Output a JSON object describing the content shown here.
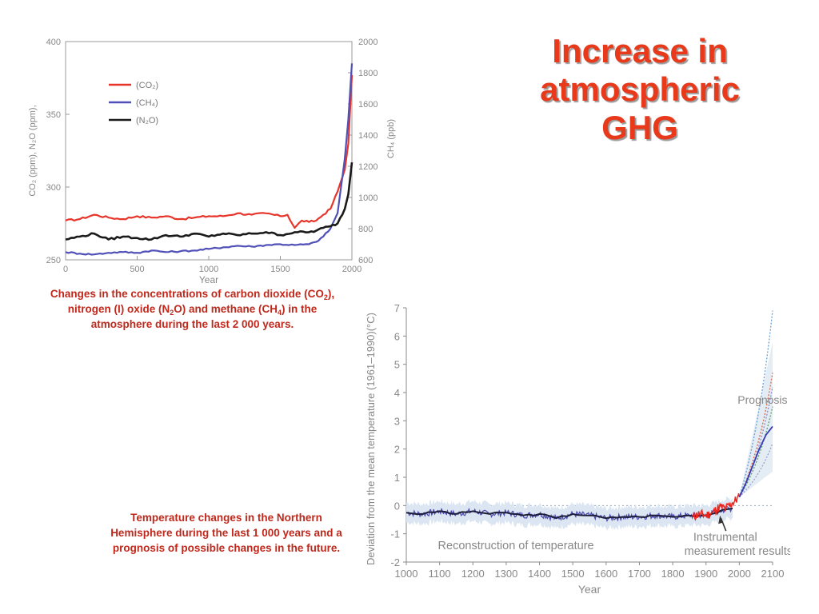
{
  "slide": {
    "title_lines": [
      "Increase in",
      "atmospheric",
      "GHG"
    ],
    "caption1": {
      "p1": "Changes in the concentrations of carbon dioxide (CO",
      "sub1": "2",
      "p2": "), nitrogen (I) oxide (N",
      "sub2": "2",
      "p3": "O) and methane (CH",
      "sub3": "4",
      "p4": ") in the atmosphere during the last 2 000 years."
    },
    "caption2": "Temperature changes in the Northern Hemisphere during the last 1 000 years and a prognosis of possible changes in the future.",
    "colors": {
      "title": "#e8391b",
      "caption": "#c0281c"
    }
  },
  "chart_data": [
    {
      "type": "line",
      "xlabel": "Year",
      "ylabel_left": "CO₂ (ppm), N₂O (ppm),",
      "ylabel_right": "CH₄ (ppb)",
      "xlim": [
        0,
        2000
      ],
      "ylim_left": [
        250,
        400
      ],
      "ylim_right": [
        600,
        2000
      ],
      "x_ticks": [
        "0",
        "500",
        "1000",
        "1500",
        "2000"
      ],
      "y_ticks_left": [
        "250",
        "300",
        "350",
        "400"
      ],
      "y_ticks_right": [
        "600",
        "800",
        "1000",
        "1200",
        "1400",
        "1600",
        "1800",
        "2000"
      ],
      "legend": [
        "(CO₂)",
        "(CH₄)",
        "(N₂O)"
      ],
      "legend_position": "top-left",
      "series": [
        {
          "name": "(CO₂)",
          "axis": "left",
          "color": "#e8352b",
          "x": [
            0,
            100,
            200,
            300,
            400,
            500,
            600,
            700,
            800,
            900,
            1000,
            1100,
            1200,
            1300,
            1400,
            1500,
            1550,
            1600,
            1650,
            1700,
            1750,
            1800,
            1850,
            1900,
            1950,
            1975,
            2000
          ],
          "y": [
            277,
            278,
            281,
            279,
            278,
            280,
            279,
            280,
            278,
            279,
            280,
            280,
            282,
            281,
            282,
            280,
            281,
            272,
            277,
            276,
            277,
            281,
            285,
            297,
            312,
            330,
            377
          ]
        },
        {
          "name": "(CH₄)",
          "axis": "right",
          "color": "#5050b8",
          "x": [
            0,
            100,
            200,
            300,
            400,
            500,
            600,
            700,
            800,
            900,
            1000,
            1100,
            1200,
            1300,
            1400,
            1500,
            1600,
            1700,
            1750,
            1800,
            1850,
            1900,
            1950,
            1975,
            2000
          ],
          "y": [
            650,
            640,
            635,
            645,
            650,
            645,
            660,
            650,
            655,
            660,
            670,
            680,
            690,
            685,
            695,
            700,
            695,
            700,
            715,
            750,
            800,
            900,
            1250,
            1500,
            1860
          ]
        },
        {
          "name": "(N₂O)",
          "axis": "left",
          "color": "#1a1a1a",
          "x": [
            0,
            100,
            200,
            300,
            400,
            500,
            600,
            700,
            800,
            900,
            1000,
            1100,
            1200,
            1300,
            1400,
            1500,
            1600,
            1700,
            1750,
            1800,
            1850,
            1900,
            1950,
            1975,
            2000
          ],
          "y": [
            264,
            266,
            268,
            264,
            266,
            265,
            264,
            267,
            266,
            268,
            266,
            268,
            267,
            268,
            269,
            267,
            269,
            269,
            270,
            272,
            273,
            275,
            285,
            295,
            317
          ]
        }
      ]
    },
    {
      "type": "line",
      "xlabel": "Year",
      "ylabel": "Deviation from the mean temperature (1961–1990)(°C)",
      "xlim": [
        1000,
        2100
      ],
      "ylim": [
        -2,
        7
      ],
      "x_ticks": [
        "1000",
        "1100",
        "1200",
        "1300",
        "1400",
        "1500",
        "1600",
        "1700",
        "1800",
        "1900",
        "2000",
        "2100"
      ],
      "y_ticks": [
        "-2",
        "-1",
        "0",
        "1",
        "2",
        "3",
        "4",
        "5",
        "6",
        "7"
      ],
      "annotations": [
        "Prognosis",
        "Reconstruction of temperature",
        "Instrumental measurement results"
      ],
      "series": [
        {
          "name": "Reconstruction of temperature",
          "color": "#1e1e3a",
          "x": [
            1000,
            1050,
            1100,
            1150,
            1200,
            1250,
            1300,
            1350,
            1400,
            1450,
            1500,
            1550,
            1600,
            1650,
            1700,
            1750,
            1800,
            1850,
            1900,
            1950,
            1980
          ],
          "y": [
            -0.25,
            -0.3,
            -0.2,
            -0.3,
            -0.2,
            -0.3,
            -0.25,
            -0.35,
            -0.3,
            -0.45,
            -0.3,
            -0.35,
            -0.45,
            -0.4,
            -0.4,
            -0.35,
            -0.4,
            -0.35,
            -0.35,
            -0.15,
            -0.1
          ]
        },
        {
          "name": "Instrumental measurement results",
          "color": "#e8241c",
          "x": [
            1860,
            1880,
            1900,
            1920,
            1940,
            1960,
            1980,
            2000
          ],
          "y": [
            -0.4,
            -0.3,
            -0.35,
            -0.25,
            -0.05,
            -0.1,
            0.1,
            0.3
          ]
        },
        {
          "name": "Prognosis",
          "color": "#3a3ab8",
          "x": [
            2000,
            2020,
            2040,
            2060,
            2080,
            2100
          ],
          "y": [
            0.3,
            0.8,
            1.4,
            2.0,
            2.5,
            2.8
          ]
        }
      ]
    }
  ]
}
